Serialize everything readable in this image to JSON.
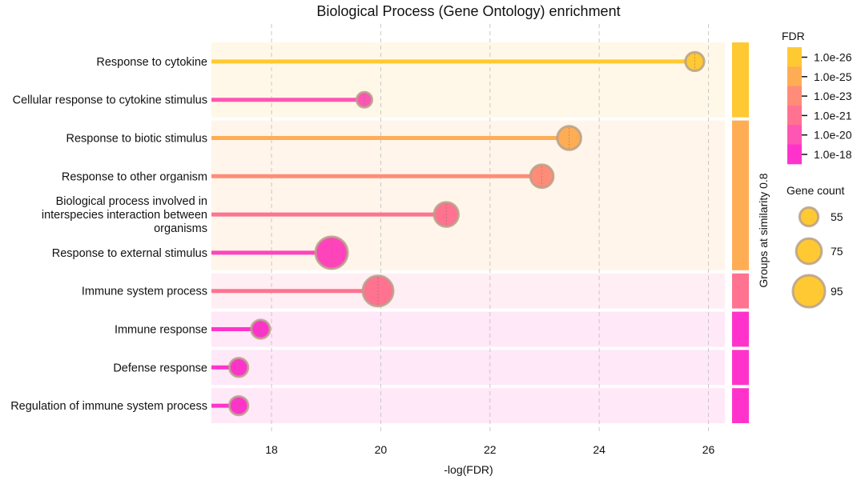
{
  "chart_data": {
    "type": "lollipop",
    "title": "Biological Process (Gene Ontology) enrichment",
    "xlabel": "-log(FDR)",
    "xlim": [
      16.9,
      26.3
    ],
    "xticks": [
      18,
      20,
      22,
      24,
      26
    ],
    "grid": "vertical-dashed",
    "categories": [
      "Response to cytokine",
      "Cellular response to cytokine stimulus",
      "Response to biotic stimulus",
      "Response to other organism",
      "Biological process involved in interspecies interaction between organisms",
      "Response to external stimulus",
      "Immune system process",
      "Immune response",
      "Defense response",
      "Regulation of immune system process"
    ],
    "category_lines": [
      [
        "Response to cytokine"
      ],
      [
        "Cellular response to cytokine stimulus"
      ],
      [
        "Response to biotic stimulus"
      ],
      [
        "Response to other organism"
      ],
      [
        "Biological process involved in",
        "interspecies interaction between",
        "organisms"
      ],
      [
        "Response to external stimulus"
      ],
      [
        "Immune system process"
      ],
      [
        "Immune response"
      ],
      [
        "Defense response"
      ],
      [
        "Regulation of immune system process"
      ]
    ],
    "values": [
      25.75,
      19.7,
      23.45,
      22.95,
      21.2,
      19.1,
      19.95,
      17.8,
      17.4,
      17.4
    ],
    "gene_counts": [
      55,
      45,
      70,
      68,
      72,
      95,
      90,
      55,
      55,
      55
    ],
    "point_colors": [
      "#ffc933",
      "#ff55b3",
      "#ffad55",
      "#ff8c78",
      "#ff7390",
      "#ff44bb",
      "#ff7390",
      "#ff33cc",
      "#ff33cc",
      "#ff33cc"
    ],
    "group_axis_label": "Groups at similarity 0.8",
    "groups": [
      {
        "rows": [
          0,
          1
        ],
        "color": "#ffc933",
        "band": "#fff8e8"
      },
      {
        "rows": [
          2,
          3,
          4,
          5
        ],
        "color": "#ffad55",
        "band": "#fff5ea"
      },
      {
        "rows": [
          6
        ],
        "color": "#ff7390",
        "band": "#ffeef3"
      },
      {
        "rows": [
          7
        ],
        "color": "#ff33cc",
        "band": "#ffe8f7"
      },
      {
        "rows": [
          8
        ],
        "color": "#ff33cc",
        "band": "#ffe8f7"
      },
      {
        "rows": [
          9
        ],
        "color": "#ff33cc",
        "band": "#ffe8f7"
      }
    ],
    "fdr_legend": {
      "title": "FDR",
      "labels": [
        "1.0e-26",
        "1.0e-25",
        "1.0e-23",
        "1.0e-21",
        "1.0e-20",
        "1.0e-18"
      ],
      "colors": [
        "#ffc933",
        "#ffad55",
        "#ff8c78",
        "#ff7390",
        "#ff55b3",
        "#ff33cc"
      ]
    },
    "size_legend": {
      "title": "Gene count",
      "values": [
        55,
        75,
        95
      ],
      "color": "#ffc933"
    }
  }
}
